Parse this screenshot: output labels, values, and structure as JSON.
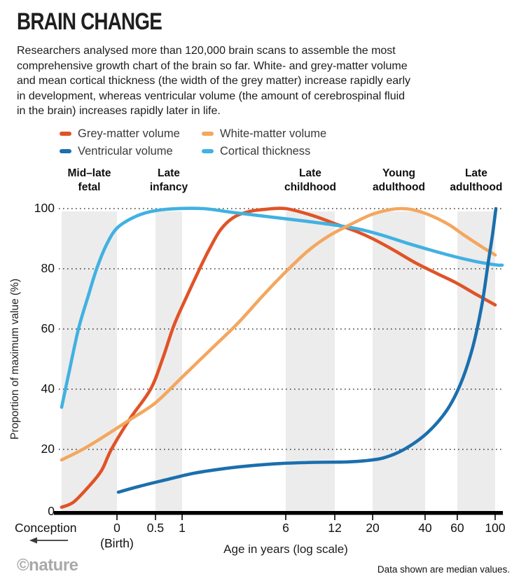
{
  "header": {
    "title": "BRAIN CHANGE",
    "intro_lines": [
      "Researchers analysed more than 120,000 brain scans to assemble the most",
      "comprehensive growth chart of the brain so far. White- and grey-matter volume",
      "and mean cortical thickness (the width of the grey matter) increase rapidly early",
      "in development, whereas ventricular volume (the amount of cerebrospinal fluid",
      "in the brain) increases rapidly later in life."
    ]
  },
  "legend": {
    "items": [
      {
        "label": "Grey-matter volume",
        "color": "#e05327"
      },
      {
        "label": "White-matter volume",
        "color": "#f3a75f"
      },
      {
        "label": "Ventricular volume",
        "color": "#1b6fad"
      },
      {
        "label": "Cortical thickness",
        "color": "#41b1e1"
      }
    ]
  },
  "stages": [
    {
      "lines": [
        "Mid–late",
        "fetal"
      ],
      "band": [
        0.0,
        0.1256
      ]
    },
    {
      "lines": [
        "Late",
        "infancy"
      ],
      "band": [
        0.213,
        0.2735
      ]
    },
    {
      "lines": [
        "Late",
        "childhood"
      ],
      "band": [
        0.5087,
        0.62
      ]
    },
    {
      "lines": [
        "Young",
        "adulthood"
      ],
      "band": [
        0.706,
        0.825
      ]
    },
    {
      "lines": [
        "Late",
        "adulthood"
      ],
      "band": [
        0.898,
        0.984
      ]
    }
  ],
  "chart_data": {
    "type": "line",
    "title": "BRAIN CHANGE",
    "xlabel": "Age in years (log scale)",
    "ylabel": "Proportion of maximum value (%)",
    "ylim": [
      0,
      100
    ],
    "grid": "dotted-horizontal",
    "y_ticks": [
      100,
      80,
      60,
      40,
      20,
      0
    ],
    "x_scale": "log",
    "x_ticks": [
      {
        "label": "0",
        "sublabel": "(Birth)",
        "pos": 0.1256
      },
      {
        "label": "0.5",
        "pos": 0.213
      },
      {
        "label": "1",
        "pos": 0.2735
      },
      {
        "label": "6",
        "pos": 0.5087
      },
      {
        "label": "12",
        "pos": 0.62
      },
      {
        "label": "20",
        "pos": 0.706
      },
      {
        "label": "40",
        "pos": 0.825
      },
      {
        "label": "60",
        "pos": 0.898
      },
      {
        "label": "100",
        "pos": 0.984
      }
    ],
    "x_annotation": {
      "label": "Conception",
      "arrow_direction": "left"
    },
    "band_color": "#ececec",
    "bands": [
      [
        0.0,
        0.1256
      ],
      [
        0.213,
        0.2735
      ],
      [
        0.5087,
        0.62
      ],
      [
        0.706,
        0.825
      ],
      [
        0.898,
        0.984
      ]
    ],
    "series": [
      {
        "name": "Grey-matter volume",
        "color": "#e05327",
        "points": [
          [
            0.0,
            0.8
          ],
          [
            0.027,
            2.5
          ],
          [
            0.0636,
            8
          ],
          [
            0.0906,
            13
          ],
          [
            0.1129,
            20
          ],
          [
            0.1542,
            30
          ],
          [
            0.2019,
            40
          ],
          [
            0.2289,
            50
          ],
          [
            0.2544,
            61
          ],
          [
            0.2814,
            70
          ],
          [
            0.3132,
            80
          ],
          [
            0.337,
            87
          ],
          [
            0.3609,
            93
          ],
          [
            0.3895,
            97
          ],
          [
            0.4245,
            99
          ],
          [
            0.4642,
            99.8
          ],
          [
            0.5087,
            100
          ],
          [
            0.5676,
            97.8
          ],
          [
            0.62,
            95
          ],
          [
            0.6709,
            92.3
          ],
          [
            0.7059,
            90
          ],
          [
            0.7504,
            86.5
          ],
          [
            0.8029,
            82
          ],
          [
            0.8537,
            78.3
          ],
          [
            0.8935,
            75.5
          ],
          [
            0.9412,
            71.5
          ],
          [
            0.9841,
            68
          ]
        ]
      },
      {
        "name": "Cortical thickness",
        "color": "#41b1e1",
        "points": [
          [
            0.0,
            34
          ],
          [
            0.0159,
            45
          ],
          [
            0.0382,
            60
          ],
          [
            0.0604,
            71
          ],
          [
            0.0795,
            80
          ],
          [
            0.1018,
            88
          ],
          [
            0.1256,
            93.5
          ],
          [
            0.1622,
            97
          ],
          [
            0.2019,
            99
          ],
          [
            0.2496,
            99.9
          ],
          [
            0.3211,
            100
          ],
          [
            0.3847,
            98.8
          ],
          [
            0.4642,
            97.4
          ],
          [
            0.5437,
            96
          ],
          [
            0.6073,
            94.8
          ],
          [
            0.6709,
            93.3
          ],
          [
            0.7266,
            91.2
          ],
          [
            0.7822,
            88.6
          ],
          [
            0.8379,
            86.2
          ],
          [
            0.8935,
            84
          ],
          [
            0.9412,
            82.4
          ],
          [
            0.9857,
            81.3
          ],
          [
            1.0,
            81.2
          ]
        ]
      },
      {
        "name": "White-matter volume",
        "color": "#f3a75f",
        "points": [
          [
            0.0,
            16.5
          ],
          [
            0.0477,
            20
          ],
          [
            0.0986,
            24.5
          ],
          [
            0.1542,
            29.8
          ],
          [
            0.213,
            35.5
          ],
          [
            0.2735,
            44
          ],
          [
            0.337,
            53
          ],
          [
            0.4006,
            62
          ],
          [
            0.4594,
            71.5
          ],
          [
            0.5087,
            79
          ],
          [
            0.5596,
            86
          ],
          [
            0.6073,
            91
          ],
          [
            0.655,
            94.7
          ],
          [
            0.7027,
            98
          ],
          [
            0.7424,
            99.6
          ],
          [
            0.7695,
            100
          ],
          [
            0.7981,
            99.6
          ],
          [
            0.8331,
            98
          ],
          [
            0.8776,
            94.8
          ],
          [
            0.9173,
            90.8
          ],
          [
            0.9571,
            87
          ],
          [
            0.9841,
            84.6
          ]
        ]
      },
      {
        "name": "Ventricular volume",
        "color": "#1b6fad",
        "points": [
          [
            0.1288,
            5.8
          ],
          [
            0.1781,
            7.8
          ],
          [
            0.2337,
            9.8
          ],
          [
            0.2973,
            12
          ],
          [
            0.3529,
            13.3
          ],
          [
            0.4165,
            14.4
          ],
          [
            0.496,
            15.3
          ],
          [
            0.5755,
            15.7
          ],
          [
            0.6391,
            15.8
          ],
          [
            0.6868,
            16.2
          ],
          [
            0.7313,
            17.2
          ],
          [
            0.7774,
            20
          ],
          [
            0.8299,
            25.5
          ],
          [
            0.8744,
            33
          ],
          [
            0.9062,
            42
          ],
          [
            0.9332,
            54
          ],
          [
            0.9539,
            68
          ],
          [
            0.9682,
            82
          ],
          [
            0.9777,
            91
          ],
          [
            0.9857,
            100
          ]
        ]
      }
    ],
    "note": "Data shown are median values."
  },
  "footer": {
    "brand": "©nature",
    "note": "Data shown are median values."
  }
}
